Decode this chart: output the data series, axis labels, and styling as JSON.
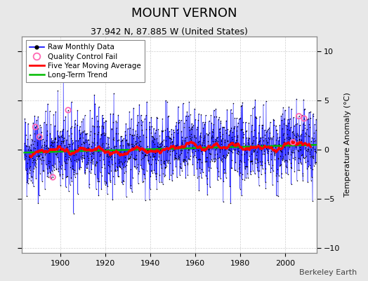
{
  "title": "MOUNT VERNON",
  "subtitle": "37.942 N, 87.885 W (United States)",
  "ylabel": "Temperature Anomaly (°C)",
  "credit": "Berkeley Earth",
  "year_start": 1884,
  "year_end": 2014,
  "ylim": [
    -10.5,
    11.5
  ],
  "yticks": [
    -10,
    -5,
    0,
    5,
    10
  ],
  "xlim": [
    1883,
    2014
  ],
  "xticks": [
    1900,
    1920,
    1940,
    1960,
    1980,
    2000
  ],
  "seed": 42,
  "raw_color": "#0000FF",
  "dot_color": "#000000",
  "qc_color": "#FF69B4",
  "moving_avg_color": "#FF0000",
  "trend_color": "#00BB00",
  "background_color": "#e8e8e8",
  "plot_bg_color": "#ffffff",
  "grid_color": "#b0b0b0",
  "title_fontsize": 13,
  "subtitle_fontsize": 9,
  "ylabel_fontsize": 8,
  "tick_fontsize": 8,
  "legend_fontsize": 7.5,
  "credit_fontsize": 8
}
